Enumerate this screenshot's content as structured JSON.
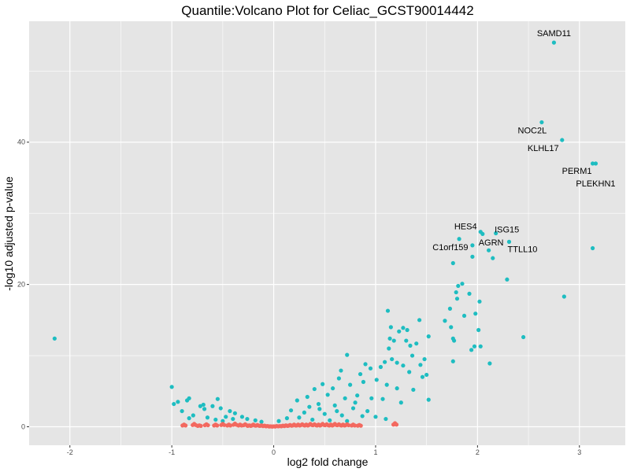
{
  "chart_data": {
    "type": "scatter",
    "title": "Quantile:Volcano Plot for Celiac_GCST90014442",
    "xlabel": "log2 fold change",
    "ylabel": "-log10 adjusted p-value",
    "xlim": [
      -2.4,
      3.45
    ],
    "ylim": [
      -2.6,
      57
    ],
    "x_ticks": [
      -2,
      -1,
      0,
      1,
      2,
      3
    ],
    "y_ticks": [
      0,
      20,
      40
    ],
    "grid": true,
    "legend": "none",
    "colors": {
      "significant": "#1ebdc1",
      "not_significant": "#f3685f",
      "panel": "#e5e5e5",
      "grid": "#ffffff"
    },
    "series": [
      {
        "group": "significant",
        "points": [
          [
            2.75,
            54.0
          ],
          [
            2.63,
            42.8
          ],
          [
            2.83,
            40.3
          ],
          [
            3.13,
            37.0
          ],
          [
            3.16,
            37.0
          ],
          [
            2.05,
            27.1
          ],
          [
            2.03,
            27.4
          ],
          [
            2.18,
            27.2
          ],
          [
            1.82,
            26.4
          ],
          [
            1.95,
            25.5
          ],
          [
            2.31,
            26.0
          ],
          [
            2.11,
            24.8
          ],
          [
            3.13,
            25.1
          ],
          [
            1.95,
            23.9
          ],
          [
            2.15,
            23.7
          ],
          [
            1.76,
            23.0
          ],
          [
            2.29,
            20.7
          ],
          [
            1.81,
            19.8
          ],
          [
            1.85,
            20.1
          ],
          [
            1.79,
            18.9
          ],
          [
            1.92,
            18.7
          ],
          [
            1.8,
            18.0
          ],
          [
            2.85,
            18.3
          ],
          [
            2.02,
            17.6
          ],
          [
            1.73,
            16.6
          ],
          [
            1.87,
            15.6
          ],
          [
            1.98,
            15.9
          ],
          [
            1.68,
            14.9
          ],
          [
            2.01,
            13.6
          ],
          [
            1.74,
            14.0
          ],
          [
            1.76,
            12.4
          ],
          [
            1.77,
            12.1
          ],
          [
            2.45,
            12.6
          ],
          [
            1.97,
            11.3
          ],
          [
            2.03,
            11.3
          ],
          [
            1.94,
            10.8
          ],
          [
            1.76,
            9.2
          ],
          [
            2.12,
            8.9
          ],
          [
            1.52,
            12.7
          ],
          [
            1.48,
            9.5
          ],
          [
            1.5,
            7.3
          ],
          [
            1.52,
            3.8
          ],
          [
            -2.15,
            12.4
          ],
          [
            1.12,
            16.3
          ],
          [
            1.15,
            14.0
          ],
          [
            1.14,
            12.4
          ],
          [
            1.13,
            11.0
          ],
          [
            1.18,
            12.1
          ],
          [
            1.23,
            13.4
          ],
          [
            1.27,
            13.9
          ],
          [
            1.3,
            12.1
          ],
          [
            1.31,
            13.6
          ],
          [
            1.34,
            11.4
          ],
          [
            1.43,
            15.0
          ],
          [
            1.4,
            11.7
          ],
          [
            1.36,
            10.0
          ],
          [
            1.09,
            9.1
          ],
          [
            1.05,
            8.4
          ],
          [
            1.16,
            9.5
          ],
          [
            1.21,
            9.0
          ],
          [
            1.27,
            8.6
          ],
          [
            1.33,
            7.7
          ],
          [
            1.44,
            8.7
          ],
          [
            1.46,
            7.0
          ],
          [
            0.72,
            10.1
          ],
          [
            0.9,
            8.8
          ],
          [
            0.95,
            8.2
          ],
          [
            0.85,
            7.4
          ],
          [
            0.66,
            7.9
          ],
          [
            0.64,
            6.8
          ],
          [
            0.88,
            6.3
          ],
          [
            1.01,
            6.6
          ],
          [
            1.11,
            5.9
          ],
          [
            1.21,
            5.4
          ],
          [
            1.37,
            5.2
          ],
          [
            0.75,
            5.9
          ],
          [
            0.58,
            5.4
          ],
          [
            0.48,
            6.0
          ],
          [
            0.4,
            5.3
          ],
          [
            0.53,
            4.5
          ],
          [
            0.7,
            4.0
          ],
          [
            0.82,
            4.4
          ],
          [
            0.96,
            4.0
          ],
          [
            1.07,
            3.9
          ],
          [
            1.25,
            3.4
          ],
          [
            0.33,
            4.2
          ],
          [
            0.23,
            3.7
          ],
          [
            0.44,
            3.2
          ],
          [
            0.6,
            3.0
          ],
          [
            0.78,
            2.6
          ],
          [
            0.92,
            2.2
          ],
          [
            0.17,
            2.3
          ],
          [
            0.3,
            2.0
          ],
          [
            0.5,
            1.8
          ],
          [
            0.67,
            1.6
          ],
          [
            1.0,
            1.4
          ],
          [
            1.1,
            1.1
          ],
          [
            0.13,
            1.2
          ],
          [
            0.25,
            1.3
          ],
          [
            0.38,
            1.0
          ],
          [
            0.55,
            0.9
          ],
          [
            0.72,
            0.8
          ],
          [
            0.87,
            1.5
          ],
          [
            0.05,
            0.8
          ],
          [
            0.45,
            2.5
          ],
          [
            0.62,
            2.2
          ],
          [
            0.35,
            2.8
          ],
          [
            0.8,
            3.4
          ],
          [
            -1.0,
            5.6
          ],
          [
            -0.98,
            3.2
          ],
          [
            -0.94,
            3.5
          ],
          [
            -0.85,
            3.7
          ],
          [
            -0.83,
            4.0
          ],
          [
            -0.9,
            2.2
          ],
          [
            -0.79,
            1.6
          ],
          [
            -0.72,
            2.9
          ],
          [
            -0.68,
            2.5
          ],
          [
            -0.69,
            3.1
          ],
          [
            -0.6,
            2.9
          ],
          [
            -0.55,
            3.9
          ],
          [
            -0.52,
            2.6
          ],
          [
            -0.43,
            2.2
          ],
          [
            -0.38,
            1.9
          ],
          [
            -0.47,
            1.4
          ],
          [
            -0.31,
            1.4
          ],
          [
            -0.26,
            1.1
          ],
          [
            -0.57,
            1.0
          ],
          [
            -0.65,
            1.3
          ],
          [
            -0.83,
            1.2
          ],
          [
            -0.18,
            0.9
          ],
          [
            -0.12,
            0.7
          ],
          [
            -0.4,
            1.1
          ],
          [
            -0.5,
            0.8
          ]
        ]
      },
      {
        "group": "not_significant",
        "points": [
          [
            -0.88,
            0.3
          ],
          [
            -0.78,
            0.4
          ],
          [
            -0.73,
            0.2
          ],
          [
            -0.66,
            0.35
          ],
          [
            -0.57,
            0.3
          ],
          [
            -0.5,
            0.4
          ],
          [
            -0.44,
            0.3
          ],
          [
            -0.38,
            0.45
          ],
          [
            -0.33,
            0.3
          ],
          [
            -0.28,
            0.35
          ],
          [
            -0.24,
            0.2
          ],
          [
            -0.2,
            0.3
          ],
          [
            -0.16,
            0.25
          ],
          [
            -0.12,
            0.2
          ],
          [
            -0.09,
            0.15
          ],
          [
            -0.06,
            0.1
          ],
          [
            -0.03,
            0.05
          ],
          [
            0.0,
            0.05
          ],
          [
            0.03,
            0.1
          ],
          [
            0.06,
            0.1
          ],
          [
            0.09,
            0.15
          ],
          [
            0.12,
            0.2
          ],
          [
            0.16,
            0.25
          ],
          [
            0.2,
            0.3
          ],
          [
            0.24,
            0.3
          ],
          [
            0.28,
            0.35
          ],
          [
            0.32,
            0.3
          ],
          [
            0.36,
            0.4
          ],
          [
            0.4,
            0.35
          ],
          [
            0.44,
            0.3
          ],
          [
            0.48,
            0.4
          ],
          [
            0.52,
            0.35
          ],
          [
            0.56,
            0.3
          ],
          [
            0.6,
            0.4
          ],
          [
            0.64,
            0.35
          ],
          [
            0.68,
            0.3
          ],
          [
            0.72,
            0.35
          ],
          [
            0.78,
            0.3
          ],
          [
            0.84,
            0.25
          ],
          [
            1.19,
            0.5
          ]
        ]
      }
    ],
    "annotations": [
      {
        "label": "SAMD11",
        "x": 2.75,
        "y": 54.0
      },
      {
        "label": "NOC2L",
        "x": 2.63,
        "y": 42.8
      },
      {
        "label": "KLHL17",
        "x": 2.83,
        "y": 40.3
      },
      {
        "label": "PERM1",
        "x": 3.13,
        "y": 37.0
      },
      {
        "label": "PLEKHN1",
        "x": 3.16,
        "y": 37.0
      },
      {
        "label": "HES4",
        "x": 2.03,
        "y": 27.4
      },
      {
        "label": "ISG15",
        "x": 2.18,
        "y": 27.2
      },
      {
        "label": "AGRN",
        "x": 2.11,
        "y": 24.8
      },
      {
        "label": "C1orf159",
        "x": 1.95,
        "y": 25.5
      },
      {
        "label": "TTLL10",
        "x": 2.31,
        "y": 26.0
      }
    ]
  }
}
